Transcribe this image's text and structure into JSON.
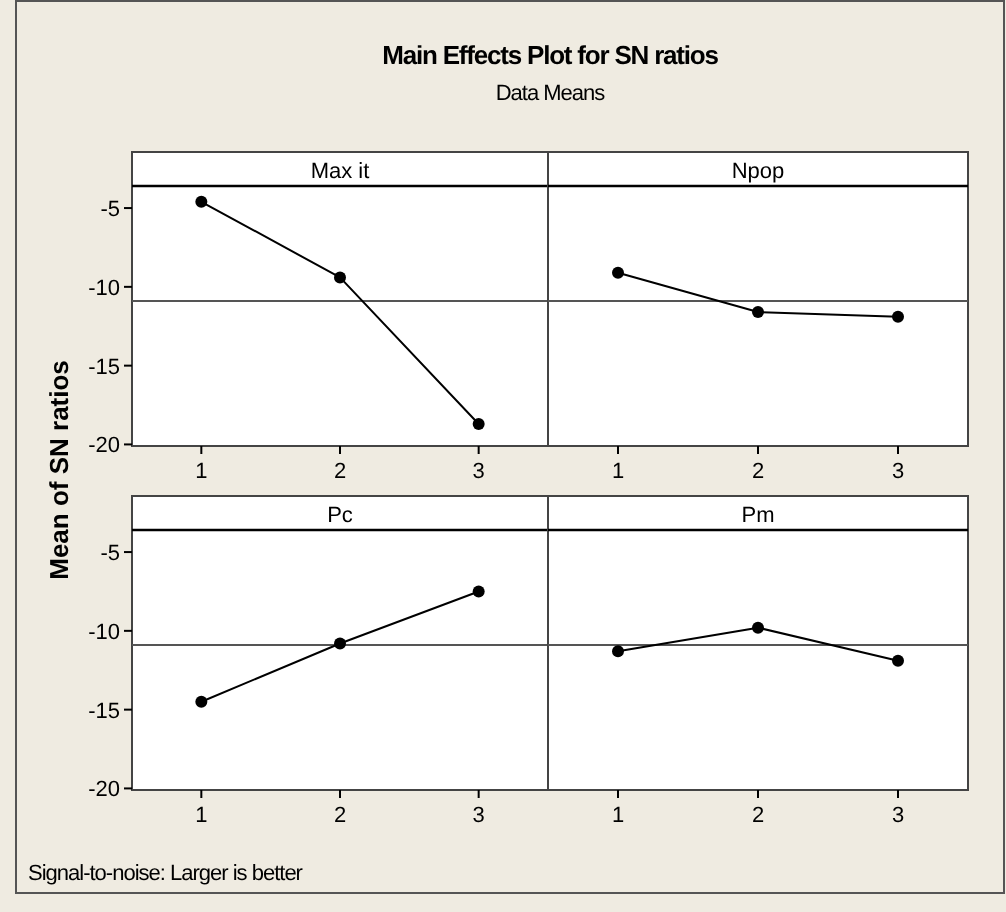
{
  "chart_data": [
    {
      "type": "line",
      "title": "Max it",
      "ylabel": "Mean of SN ratios",
      "categories": [
        "1",
        "2",
        "3"
      ],
      "values": [
        -4.6,
        -9.4,
        -18.7
      ],
      "color": "#000000",
      "ylim": [
        -20.1,
        -3.6
      ],
      "yticks": [
        -20,
        -15,
        -10,
        -5
      ],
      "marker": "circle",
      "line_style": "solid",
      "ref_lines": [
        {
          "axis": "y",
          "value": -10.9
        }
      ]
    },
    {
      "type": "line",
      "title": "Npop",
      "categories": [
        "1",
        "2",
        "3"
      ],
      "values": [
        -9.1,
        -11.6,
        -11.9
      ],
      "color": "#000000",
      "ylim": [
        -20.1,
        -3.6
      ],
      "tick_labels": "x",
      "marker": "circle",
      "line_style": "solid",
      "ref_lines": [
        {
          "axis": "y",
          "value": -10.9
        }
      ]
    },
    {
      "type": "line",
      "title": "Pc",
      "categories": [
        "1",
        "2",
        "3"
      ],
      "values": [
        -14.5,
        -10.8,
        -7.5
      ],
      "color": "#000000",
      "ylim": [
        -20.1,
        -3.6
      ],
      "yticks": [
        -20,
        -15,
        -10,
        -5
      ],
      "marker": "circle",
      "line_style": "solid",
      "ref_lines": [
        {
          "axis": "y",
          "value": -10.9
        }
      ]
    },
    {
      "type": "line",
      "title": "Pm",
      "categories": [
        "1",
        "2",
        "3"
      ],
      "values": [
        -11.3,
        -9.8,
        -11.9
      ],
      "color": "#000000",
      "ylim": [
        -20.1,
        -3.6
      ],
      "tick_labels": "x",
      "marker": "circle",
      "line_style": "solid",
      "ref_lines": [
        {
          "axis": "y",
          "value": -10.9
        }
      ]
    },
    {
      "type": "other",
      "title": "Main Effects Plot for SN ratios",
      "subtitle": "Data Means",
      "annotations": [
        "Signal-to-noise: Larger is better"
      ]
    }
  ]
}
